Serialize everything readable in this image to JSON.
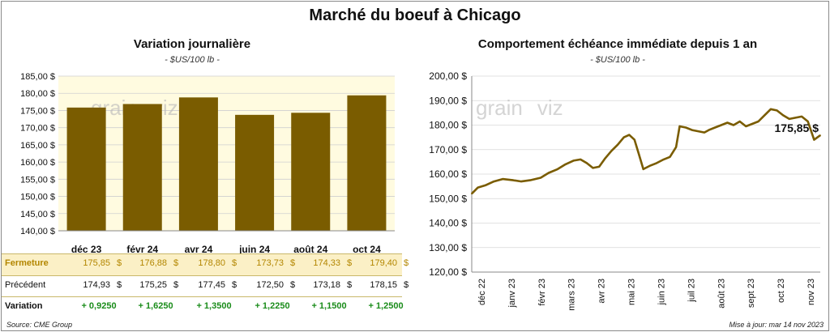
{
  "title": "Marché du boeuf à Chicago",
  "watermark": {
    "left": "grain",
    "right": "viz"
  },
  "left_panel": {
    "title": "Variation  journalière",
    "subtitle": "- $US/100 lb -"
  },
  "right_panel": {
    "title": "Comportement  échéance immédiate depuis 1 an",
    "subtitle": "- $US/100 lb -"
  },
  "table": {
    "rows": [
      {
        "label": "Fermeture",
        "values": [
          "175,85",
          "176,88",
          "178,80",
          "173,73",
          "174,33",
          "179,40"
        ],
        "unit": "$"
      },
      {
        "label": "Précédent",
        "values": [
          "174,93",
          "175,25",
          "177,45",
          "172,50",
          "173,18",
          "178,15"
        ],
        "unit": "$"
      },
      {
        "label": "Variation",
        "values": [
          "+ 0,9250",
          "+ 1,6250",
          "+ 1,3500",
          "+ 1,2250",
          "+ 1,1500",
          "+ 1,2500"
        ]
      }
    ],
    "colors": {
      "highlight": "#fbf0c6",
      "label_gold": "#b38600",
      "variation": "#1a8c1a"
    }
  },
  "footer": {
    "source": "Source: CME Group",
    "updated": "Mise à jour: mar 14 nov 2023"
  },
  "chart_data": [
    {
      "type": "bar",
      "categories": [
        "déc 23",
        "févr 24",
        "avr 24",
        "juin 24",
        "août 24",
        "oct 24"
      ],
      "values": [
        175.85,
        176.88,
        178.8,
        173.73,
        174.33,
        179.4
      ],
      "ylim": [
        140,
        185
      ],
      "yticks": [
        "140,00 $",
        "145,00 $",
        "150,00 $",
        "155,00 $",
        "160,00 $",
        "165,00 $",
        "170,00 $",
        "175,00 $",
        "180,00 $",
        "185,00 $"
      ],
      "grid": true,
      "color": "#7a5c00"
    },
    {
      "type": "line",
      "x_ticks": [
        "déc 22",
        "janv 23",
        "févr 23",
        "mars 23",
        "avr 23",
        "mai 23",
        "juin 23",
        "juil 23",
        "août 23",
        "sept 23",
        "oct 23",
        "nov 23"
      ],
      "ylim": [
        120,
        200
      ],
      "yticks": [
        "120,00 $",
        "130,00 $",
        "140,00 $",
        "150,00 $",
        "160,00 $",
        "170,00 $",
        "180,00 $",
        "190,00 $",
        "200,00 $"
      ],
      "grid": true,
      "color": "#7a5c00",
      "last_label": "175,85 $",
      "points": [
        [
          "2022-11-15",
          152.0
        ],
        [
          "2022-11-22",
          154.5
        ],
        [
          "2022-12-01",
          155.5
        ],
        [
          "2022-12-10",
          157.0
        ],
        [
          "2022-12-20",
          158.0
        ],
        [
          "2023-01-01",
          157.5
        ],
        [
          "2023-01-10",
          157.0
        ],
        [
          "2023-01-20",
          157.5
        ],
        [
          "2023-02-01",
          158.5
        ],
        [
          "2023-02-10",
          160.5
        ],
        [
          "2023-02-20",
          162.0
        ],
        [
          "2023-03-01",
          164.0
        ],
        [
          "2023-03-10",
          165.5
        ],
        [
          "2023-03-18",
          166.0
        ],
        [
          "2023-03-25",
          164.5
        ],
        [
          "2023-04-01",
          162.5
        ],
        [
          "2023-04-08",
          163.0
        ],
        [
          "2023-04-15",
          166.5
        ],
        [
          "2023-04-22",
          169.5
        ],
        [
          "2023-04-29",
          172.0
        ],
        [
          "2023-05-06",
          175.0
        ],
        [
          "2023-05-12",
          176.0
        ],
        [
          "2023-05-18",
          174.0
        ],
        [
          "2023-05-23",
          168.0
        ],
        [
          "2023-05-28",
          162.0
        ],
        [
          "2023-06-05",
          163.5
        ],
        [
          "2023-06-12",
          164.5
        ],
        [
          "2023-06-20",
          166.0
        ],
        [
          "2023-06-27",
          167.0
        ],
        [
          "2023-07-04",
          171.0
        ],
        [
          "2023-07-08",
          179.5
        ],
        [
          "2023-07-15",
          179.0
        ],
        [
          "2023-07-22",
          178.0
        ],
        [
          "2023-07-29",
          177.5
        ],
        [
          "2023-08-05",
          177.0
        ],
        [
          "2023-08-10",
          178.0
        ],
        [
          "2023-08-17",
          179.0
        ],
        [
          "2023-08-24",
          180.0
        ],
        [
          "2023-08-31",
          181.0
        ],
        [
          "2023-09-07",
          180.0
        ],
        [
          "2023-09-14",
          181.5
        ],
        [
          "2023-09-21",
          179.5
        ],
        [
          "2023-09-28",
          180.5
        ],
        [
          "2023-10-05",
          181.5
        ],
        [
          "2023-10-12",
          184.0
        ],
        [
          "2023-10-19",
          186.5
        ],
        [
          "2023-10-26",
          186.0
        ],
        [
          "2023-11-02",
          184.0
        ],
        [
          "2023-11-09",
          182.5
        ],
        [
          "2023-11-16",
          183.0
        ],
        [
          "2023-11-23",
          183.5
        ],
        [
          "2023-11-30",
          181.5
        ],
        [
          "2023-12-07",
          174.0
        ],
        [
          "2023-12-14",
          175.85
        ]
      ]
    }
  ]
}
